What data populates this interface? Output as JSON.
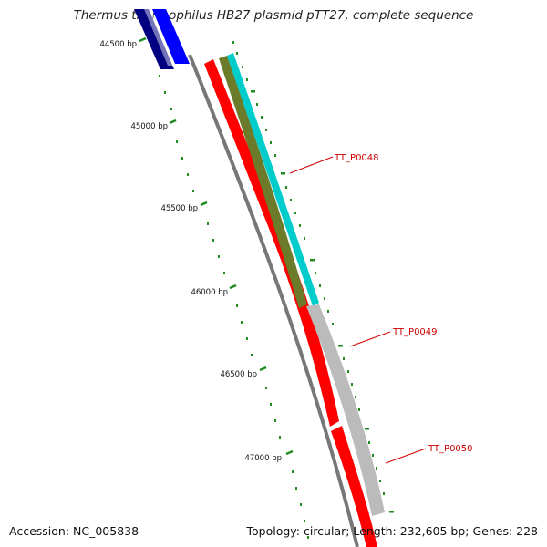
{
  "title": "Thermus thermophilus HB27 plasmid pTT27, complete sequence",
  "footer": {
    "accession": "Accession: NC_005838",
    "topology": "Topology: circular; Length: 232,605 bp; Genes: 228"
  },
  "ruler": {
    "tick_labels": [
      "44500 bp",
      "45000 bp",
      "45500 bp",
      "46000 bp",
      "46500 bp",
      "47000 bp"
    ],
    "color": "#228b22"
  },
  "genes": [
    {
      "name": "TT_P0048",
      "color": "#cc0000"
    },
    {
      "name": "TT_P0049",
      "color": "#cc0000"
    },
    {
      "name": "TT_P0050",
      "color": "#cc0000"
    }
  ],
  "colors": {
    "backbone": "#777777",
    "forward_cds": "#ff0000",
    "cds_dark": "#000080",
    "cds_blue": "#0000ff",
    "cyan_feature": "#00cccc",
    "olive_feature": "#6b7b2a",
    "gray_feature": "#bbbbbb"
  }
}
